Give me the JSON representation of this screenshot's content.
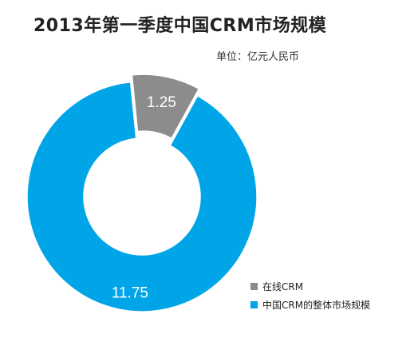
{
  "title": "2013年第一季度中国CRM市场规模",
  "unit_label": "单位：亿元人民币",
  "chart_data": {
    "type": "pie",
    "title": "2013年第一季度中国CRM市场规模",
    "subtitle": "单位：亿元人民币",
    "categories": [
      "在线CRM",
      "中国CRM的整体市场规模"
    ],
    "values": [
      1.25,
      11.75
    ],
    "value_labels": [
      "1.25",
      "11.75"
    ],
    "colors": [
      "#8c8c8c",
      "#00a5e8"
    ],
    "legend": "bottom-right",
    "donut": true
  },
  "legend": {
    "items": [
      {
        "label": "在线CRM",
        "color": "#8c8c8c"
      },
      {
        "label": "中国CRM的整体市场规模",
        "color": "#00a5e8"
      }
    ]
  }
}
